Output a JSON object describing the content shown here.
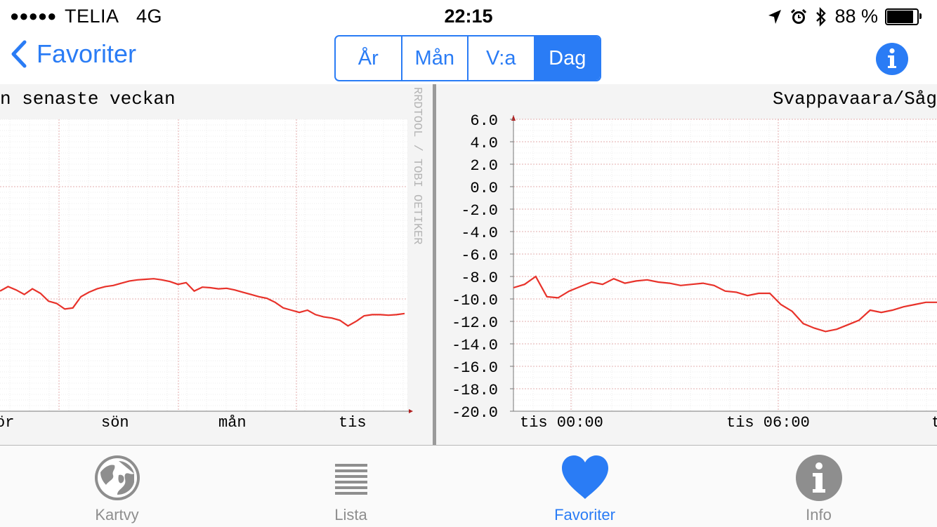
{
  "status_bar": {
    "carrier": "TELIA",
    "network": "4G",
    "time": "22:15",
    "battery_text": "88 %",
    "battery_level": 0.88
  },
  "nav": {
    "back_label": "Favoriter",
    "segments": [
      "År",
      "Mån",
      "V:a",
      "Dag"
    ],
    "active_segment": "Dag"
  },
  "chart_left": {
    "title": "n senaste veckan",
    "x_ticks": [
      "ör",
      "sön",
      "mån",
      "tis"
    ],
    "side_label": "RRDTOOL / TOBI OETIKER"
  },
  "chart_right": {
    "title": "Svappavaara/Såg",
    "x_ticks": [
      "tis 00:00",
      "tis 06:00",
      "t"
    ]
  },
  "chart_data": [
    {
      "type": "line",
      "title": "n senaste veckan",
      "x_ticks": [
        "ör",
        "sön",
        "mån",
        "tis"
      ],
      "grid": true,
      "series": [
        {
          "color": "#e8322a",
          "values": [
            -9.3,
            -8.9,
            -9.2,
            -9.6,
            -9.1,
            -9.5,
            -10.2,
            -10.4,
            -10.9,
            -10.8,
            -9.8,
            -9.4,
            -9.1,
            -8.9,
            -8.8,
            -8.6,
            -8.4,
            -8.3,
            -8.25,
            -8.2,
            -8.3,
            -8.45,
            -8.7,
            -8.55,
            -9.3,
            -8.95,
            -9.0,
            -9.1,
            -9.05,
            -9.2,
            -9.4,
            -9.6,
            -9.8,
            -9.95,
            -10.3,
            -10.8,
            -11.0,
            -11.2,
            -11.0,
            -11.4,
            -11.6,
            -11.7,
            -11.9,
            -12.4,
            -12.0,
            -11.5,
            -11.4,
            -11.4,
            -11.45,
            -11.4,
            -11.3
          ]
        }
      ]
    },
    {
      "type": "line",
      "title": "Svappavaara/Såg",
      "y_ticks": [
        "6.0",
        "4.0",
        "2.0",
        "0.0",
        "-2.0",
        "-4.0",
        "-6.0",
        "-8.0",
        "-10.0",
        "-12.0",
        "-14.0",
        "-16.0",
        "-18.0",
        "-20.0"
      ],
      "ylim": [
        -20,
        6
      ],
      "x_ticks": [
        "tis 00:00",
        "tis 06:00",
        "t"
      ],
      "grid": true,
      "series": [
        {
          "color": "#e8322a",
          "values": [
            -9.0,
            -8.7,
            -8.0,
            -9.8,
            -9.9,
            -9.3,
            -8.9,
            -8.5,
            -8.7,
            -8.2,
            -8.6,
            -8.4,
            -8.3,
            -8.5,
            -8.6,
            -8.8,
            -8.7,
            -8.6,
            -8.8,
            -9.3,
            -9.4,
            -9.7,
            -9.5,
            -9.5,
            -10.5,
            -11.1,
            -12.2,
            -12.6,
            -12.9,
            -12.7,
            -12.3,
            -11.9,
            -11.0,
            -11.2,
            -11.0,
            -10.7,
            -10.5,
            -10.3,
            -10.3
          ]
        }
      ]
    }
  ],
  "tabs": [
    {
      "label": "Kartvy",
      "icon": "globe-icon"
    },
    {
      "label": "Lista",
      "icon": "list-icon"
    },
    {
      "label": "Favoriter",
      "icon": "heart-icon",
      "active": true
    },
    {
      "label": "Info",
      "icon": "info-icon"
    }
  ],
  "colors": {
    "accent": "#2a7cf5",
    "line": "#e8322a",
    "grid": "#e3aeae",
    "inactive": "#8e8e8e"
  }
}
